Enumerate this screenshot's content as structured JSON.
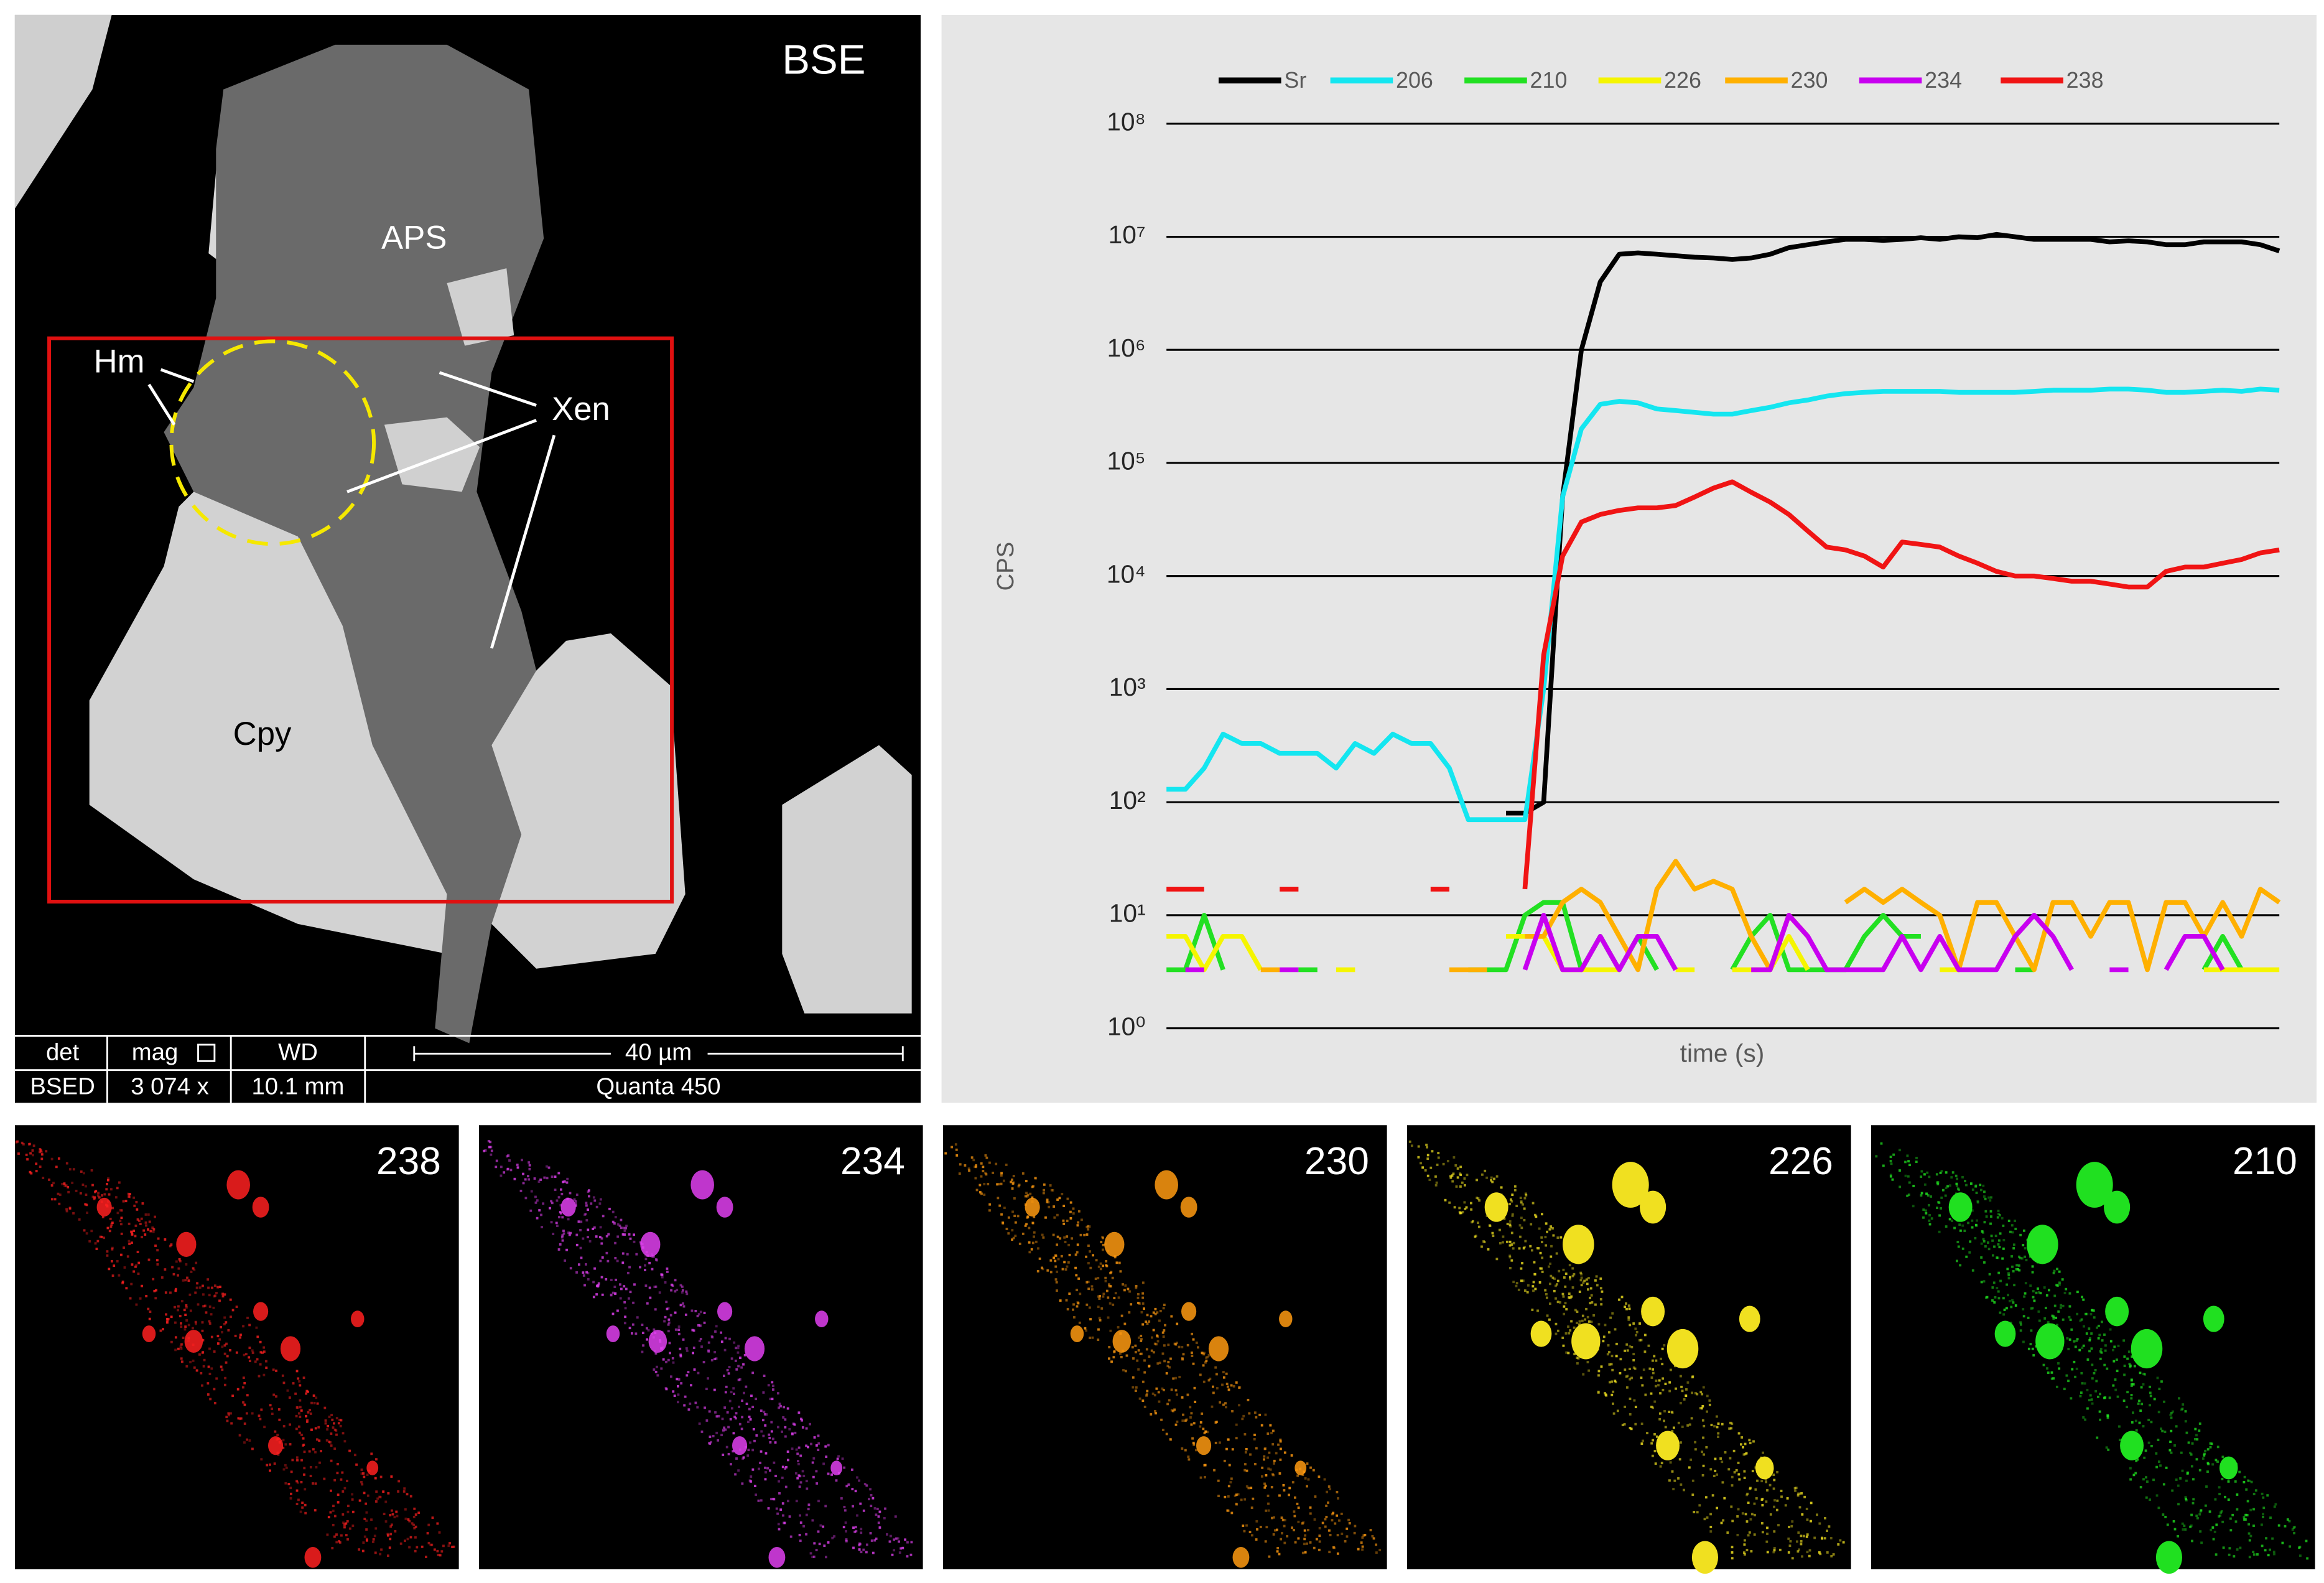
{
  "chart_data": {
    "type": "line",
    "y_label": "CPS",
    "x_label": "time (s)",
    "log_scale": true,
    "grid": true,
    "legend_position": "top",
    "ylim": [
      1,
      100000000
    ],
    "yticks": [
      {
        "value": 1,
        "label": "10⁰"
      },
      {
        "value": 10,
        "label": "10¹"
      },
      {
        "value": 100,
        "label": "10²"
      },
      {
        "value": 1000,
        "label": "10³"
      },
      {
        "value": 10000,
        "label": "10⁴"
      },
      {
        "value": 100000,
        "label": "10⁵"
      },
      {
        "value": 1000000,
        "label": "10⁶"
      },
      {
        "value": 10000000,
        "label": "10⁷"
      },
      {
        "value": 100000000,
        "label": "10⁸"
      }
    ],
    "series": [
      {
        "name": "Sr",
        "color": "#000000",
        "values": [
          null,
          null,
          null,
          null,
          null,
          null,
          null,
          null,
          null,
          null,
          null,
          null,
          null,
          null,
          null,
          null,
          null,
          null,
          80,
          80,
          100,
          50000,
          1000000,
          4000000,
          7000000,
          7200000,
          7000000,
          6800000,
          6600000,
          6500000,
          6300000,
          6500000,
          7000000,
          8000000,
          8500000,
          9000000,
          9500000,
          9500000,
          9300000,
          9500000,
          9800000,
          9500000,
          10000000,
          9800000,
          10500000,
          10000000,
          9500000,
          9500000,
          9500000,
          9500000,
          9000000,
          9200000,
          9000000,
          8500000,
          8500000,
          9000000,
          9000000,
          9000000,
          8500000,
          7500000
        ]
      },
      {
        "name": "206",
        "color": "#14e6f0",
        "values": [
          130,
          130,
          200,
          400,
          330,
          330,
          270,
          270,
          270,
          200,
          330,
          270,
          400,
          330,
          330,
          200,
          70,
          70,
          70,
          70,
          1000,
          50000,
          200000,
          330000,
          350000,
          340000,
          300000,
          290000,
          280000,
          270000,
          270000,
          290000,
          310000,
          340000,
          360000,
          390000,
          410000,
          420000,
          430000,
          430000,
          430000,
          430000,
          420000,
          420000,
          420000,
          420000,
          430000,
          440000,
          440000,
          440000,
          450000,
          450000,
          440000,
          420000,
          420000,
          430000,
          440000,
          430000,
          450000,
          440000
        ]
      },
      {
        "name": "210",
        "color": "#22e022",
        "values": [
          3.3,
          3.3,
          10,
          3.3,
          null,
          null,
          null,
          3.3,
          3.3,
          null,
          null,
          null,
          null,
          null,
          null,
          null,
          3.3,
          3.3,
          3.3,
          10,
          13,
          13,
          3.3,
          6.5,
          3.3,
          6.5,
          3.3,
          null,
          null,
          null,
          3.3,
          6.5,
          10,
          3.3,
          3.3,
          3.3,
          3.3,
          6.5,
          10,
          6.5,
          6.5,
          null,
          null,
          null,
          null,
          3.3,
          3.3,
          null,
          null,
          null,
          null,
          null,
          null,
          null,
          null,
          3.3,
          6.5,
          3.3,
          null,
          null
        ]
      },
      {
        "name": "226",
        "color": "#f5f500",
        "values": [
          6.5,
          6.5,
          3.3,
          6.5,
          6.5,
          3.3,
          null,
          null,
          null,
          3.3,
          3.3,
          null,
          null,
          null,
          null,
          null,
          null,
          null,
          6.5,
          6.5,
          6.5,
          3.3,
          3.3,
          3.3,
          3.3,
          null,
          null,
          3.3,
          3.3,
          null,
          3.3,
          3.3,
          3.3,
          6.5,
          3.3,
          null,
          null,
          null,
          null,
          null,
          null,
          3.3,
          3.3,
          null,
          null,
          null,
          null,
          null,
          null,
          null,
          null,
          null,
          null,
          null,
          null,
          3.3,
          3.3,
          3.3,
          3.3,
          3.3
        ]
      },
      {
        "name": "230",
        "color": "#ffb000",
        "values": [
          null,
          null,
          null,
          null,
          null,
          3.3,
          3.3,
          null,
          null,
          null,
          null,
          null,
          null,
          null,
          null,
          3.3,
          3.3,
          3.3,
          null,
          6.5,
          6.5,
          13,
          17,
          13,
          6.5,
          3.3,
          17,
          30,
          17,
          20,
          17,
          6.5,
          3.3,
          10,
          6.5,
          null,
          13,
          17,
          13,
          17,
          13,
          10,
          3.3,
          13,
          13,
          6.5,
          3.3,
          13,
          13,
          6.5,
          13,
          13,
          3.3,
          13,
          13,
          6.5,
          13,
          6.5,
          17,
          13
        ]
      },
      {
        "name": "234",
        "color": "#c800f0",
        "values": [
          null,
          3.3,
          3.3,
          null,
          null,
          null,
          3.3,
          3.3,
          null,
          null,
          null,
          null,
          null,
          null,
          null,
          null,
          null,
          null,
          null,
          3.3,
          10,
          3.3,
          3.3,
          6.5,
          3.3,
          6.5,
          6.5,
          3.3,
          null,
          null,
          null,
          3.3,
          3.3,
          10,
          6.5,
          3.3,
          3.3,
          3.3,
          3.3,
          6.5,
          3.3,
          6.5,
          3.3,
          3.3,
          3.3,
          6.5,
          10,
          6.5,
          3.3,
          null,
          3.3,
          3.3,
          null,
          3.3,
          6.5,
          6.5,
          3.3,
          null,
          null,
          null
        ]
      },
      {
        "name": "238",
        "color": "#f01414",
        "values": [
          17,
          17,
          17,
          null,
          null,
          null,
          17,
          17,
          null,
          null,
          null,
          null,
          null,
          null,
          17,
          17,
          null,
          null,
          null,
          17,
          2000,
          15000,
          30000,
          35000,
          38000,
          40000,
          40000,
          42000,
          50000,
          60000,
          68000,
          55000,
          45000,
          35000,
          25000,
          18000,
          17000,
          15000,
          12000,
          20000,
          19000,
          18000,
          15000,
          13000,
          11000,
          10000,
          10000,
          9500,
          9000,
          9000,
          8500,
          8000,
          8000,
          11000,
          12000,
          12000,
          13000,
          14000,
          16000,
          17000
        ]
      }
    ]
  },
  "bse_panel": {
    "label": "BSE",
    "annotations": {
      "aps": "APS",
      "hm": "Hm",
      "xen": "Xen",
      "cpy": "Cpy"
    },
    "databar": {
      "det": "det",
      "det_value": "BSED",
      "mag": "mag",
      "mag_value": "3 074 x",
      "wd": "WD",
      "wd_value": "10.1 mm",
      "scale": "40 µm",
      "instrument": "Quanta 450"
    }
  },
  "maps": [
    {
      "label": "238",
      "color": "#ff2020"
    },
    {
      "label": "234",
      "color": "#e040f0"
    },
    {
      "label": "230",
      "color": "#ff9a10"
    },
    {
      "label": "226",
      "color": "#f0e020"
    },
    {
      "label": "210",
      "color": "#20e020"
    }
  ]
}
